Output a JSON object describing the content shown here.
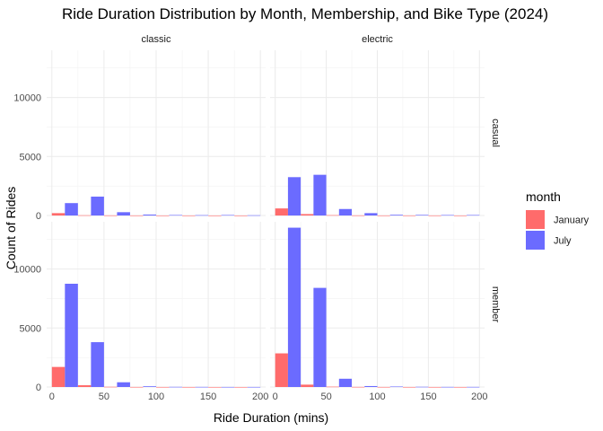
{
  "chart_data": {
    "type": "bar",
    "title": "Ride Duration Distribution by Month, Membership, and Bike Type (2024)",
    "xlabel": "Ride Duration (mins)",
    "ylabel": "Count of Rides",
    "xlim": [
      -5,
      205
    ],
    "ylim": [
      0,
      14000
    ],
    "x_ticks": [
      0,
      50,
      100,
      150,
      200
    ],
    "y_ticks": [
      0,
      5000,
      10000
    ],
    "grid": true,
    "legend": {
      "title": "month",
      "position": "right",
      "entries": [
        {
          "name": "January",
          "color": "#FF6B6B"
        },
        {
          "name": "July",
          "color": "#6B6BFF"
        }
      ]
    },
    "facets": {
      "columns": [
        "classic",
        "electric"
      ],
      "rows": [
        "casual",
        "member"
      ]
    },
    "bin_width": 25,
    "bin_centers": [
      12.5,
      37.5,
      62.5,
      87.5,
      112.5,
      137.5,
      162.5,
      187.5
    ],
    "panels": [
      {
        "bike_type": "classic",
        "membership": "casual",
        "series": [
          {
            "name": "January",
            "values": [
              200,
              20,
              10,
              5,
              3,
              3,
              2,
              2
            ]
          },
          {
            "name": "July",
            "values": [
              1050,
              1600,
              280,
              80,
              40,
              30,
              40,
              20
            ]
          }
        ]
      },
      {
        "bike_type": "electric",
        "membership": "casual",
        "series": [
          {
            "name": "January",
            "values": [
              600,
              120,
              30,
              10,
              5,
              5,
              5,
              3
            ]
          },
          {
            "name": "July",
            "values": [
              3250,
              3450,
              550,
              200,
              60,
              50,
              40,
              40
            ]
          }
        ]
      },
      {
        "bike_type": "classic",
        "membership": "member",
        "series": [
          {
            "name": "January",
            "values": [
              1700,
              150,
              20,
              5,
              3,
              2,
              1,
              1
            ]
          },
          {
            "name": "July",
            "values": [
              8750,
              3800,
              400,
              60,
              15,
              10,
              5,
              5
            ]
          }
        ]
      },
      {
        "bike_type": "electric",
        "membership": "member",
        "series": [
          {
            "name": "January",
            "values": [
              2850,
              200,
              30,
              10,
              5,
              3,
              2,
              2
            ]
          },
          {
            "name": "July",
            "values": [
              13500,
              8400,
              700,
              80,
              40,
              20,
              10,
              10
            ]
          }
        ]
      }
    ]
  }
}
